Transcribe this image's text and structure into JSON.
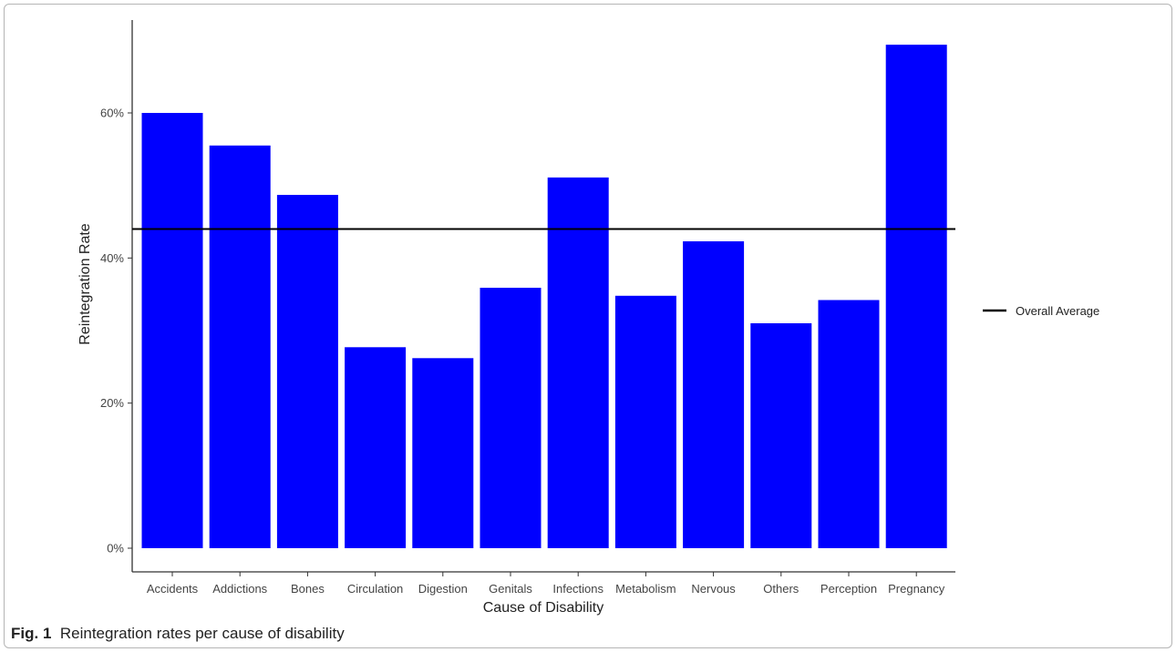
{
  "chart_data": {
    "type": "bar",
    "xlabel": "Cause of Disability",
    "ylabel": "Reintegration Rate",
    "categories": [
      "Accidents",
      "Addictions",
      "Bones",
      "Circulation",
      "Digestion",
      "Genitals",
      "Infections",
      "Metabolism",
      "Nervous",
      "Others",
      "Perception",
      "Pregnancy"
    ],
    "values": [
      0.6,
      0.555,
      0.487,
      0.277,
      0.262,
      0.359,
      0.511,
      0.348,
      0.423,
      0.31,
      0.342,
      0.694
    ],
    "ylim": [
      0,
      0.7
    ],
    "yticks": [
      0,
      0.2,
      0.4,
      0.6
    ],
    "ytick_labels": [
      "0%",
      "20%",
      "40%",
      "60%"
    ],
    "reference_line": {
      "name": "Overall Average",
      "value": 0.44,
      "color": "#000000"
    },
    "bar_color": "#0000ff",
    "grid": false,
    "legend_position": "right"
  },
  "caption": {
    "label": "Fig. 1",
    "text": "Reintegration rates per cause of disability"
  }
}
